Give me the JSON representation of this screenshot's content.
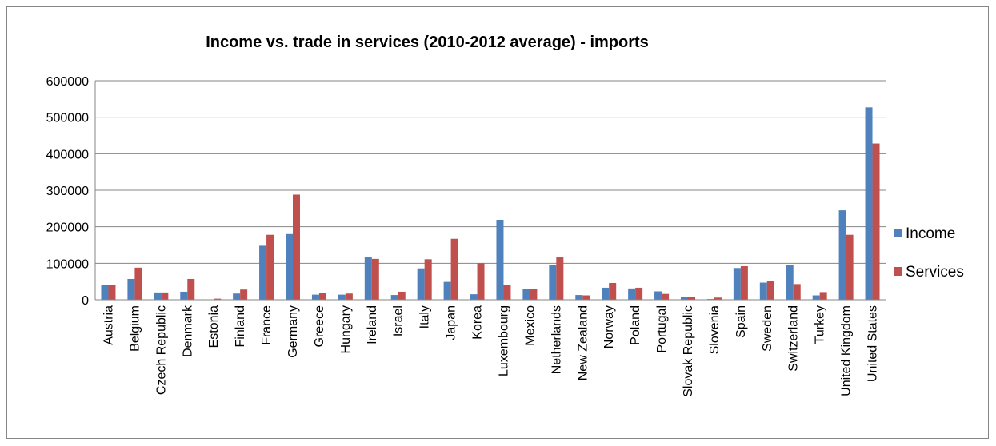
{
  "chart_data": {
    "type": "bar",
    "title": "Income vs. trade in services (2010-2012 average) - imports",
    "xlabel": "",
    "ylabel": "",
    "ylim": [
      0,
      600000
    ],
    "yticks": [
      "0",
      "100000",
      "200000",
      "300000",
      "400000",
      "500000",
      "600000"
    ],
    "grid": true,
    "legend_position": "right",
    "categories": [
      "Austria",
      "Belgium",
      "Czech Republic",
      "Denmark",
      "Estonia",
      "Finland",
      "France",
      "Germany",
      "Greece",
      "Hungary",
      "Ireland",
      "Israel",
      "Italy",
      "Japan",
      "Korea",
      "Luxembourg",
      "Mexico",
      "Netherlands",
      "New Zealand",
      "Norway",
      "Poland",
      "Portugal",
      "Slovak Republic",
      "Slovenia",
      "Spain",
      "Sweden",
      "Switzerland",
      "Turkey",
      "United Kingdom",
      "United States"
    ],
    "series": [
      {
        "name": "Income",
        "color": "#4F81BD",
        "values": [
          41000,
          57000,
          20000,
          22000,
          1000,
          17000,
          148000,
          180000,
          14000,
          14000,
          116000,
          13000,
          86000,
          49000,
          15000,
          219000,
          30000,
          96000,
          13000,
          33000,
          31000,
          23000,
          7000,
          2000,
          87000,
          47000,
          95000,
          12000,
          245000,
          527000
        ]
      },
      {
        "name": "Services",
        "color": "#C0504D",
        "values": [
          41000,
          88000,
          20000,
          57000,
          3000,
          28000,
          178000,
          288000,
          19000,
          17000,
          112000,
          22000,
          111000,
          167000,
          100000,
          41000,
          29000,
          116000,
          12000,
          46000,
          33000,
          16000,
          7000,
          6000,
          92000,
          52000,
          43000,
          21000,
          178000,
          428000
        ]
      }
    ]
  }
}
